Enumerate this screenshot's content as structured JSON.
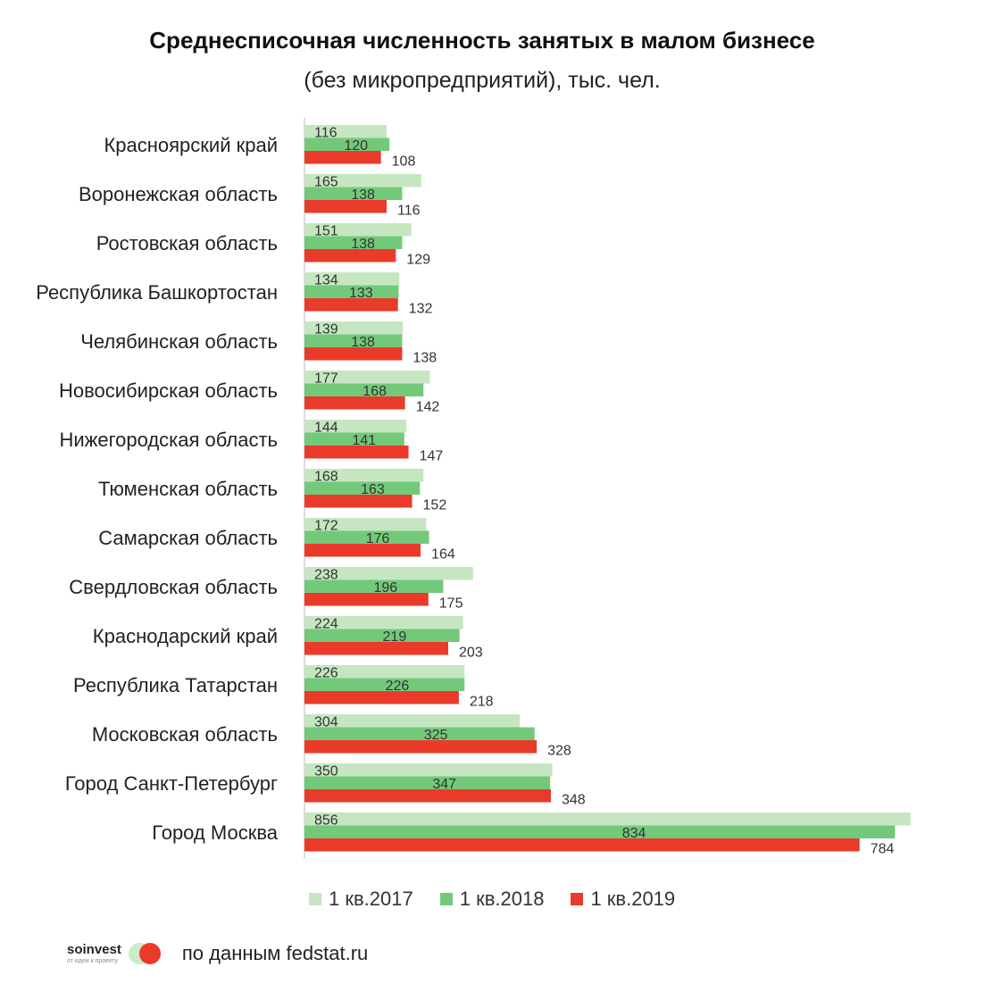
{
  "title": "Среднесписочная численность занятых в малом бизнесе",
  "subtitle": "(без микропредприятий), тыс. чел.",
  "source": "по данным fedstat.ru",
  "logo": {
    "name": "soinvest",
    "tagline": "от идеи к проекту"
  },
  "colors": {
    "s2017": "#c6e6c1",
    "s2018": "#73c97a",
    "s2019": "#ea3a2a",
    "axis": "#bbbbbb",
    "label": "#333333"
  },
  "chart_data": {
    "type": "bar",
    "orientation": "horizontal",
    "title": "Среднесписочная численность занятых в малом бизнесе",
    "subtitle": "(без микропредприятий), тыс. чел.",
    "legend_position": "bottom",
    "grid": false,
    "xlim": [
      0,
      856
    ],
    "categories": [
      "Красноярский край",
      "Воронежская область",
      "Ростовская область",
      "Республика Башкортостан",
      "Челябинская область",
      "Новосибирская область",
      "Нижегородская область",
      "Тюменская область",
      "Самарская область",
      "Свердловская область",
      "Краснодарский край",
      "Республика Татарстан",
      "Московская область",
      "Город Санкт-Петербург",
      "Город Москва"
    ],
    "series": [
      {
        "name": "1 кв.2017",
        "color": "#c6e6c1",
        "values": [
          116,
          165,
          151,
          134,
          139,
          177,
          144,
          168,
          172,
          238,
          224,
          226,
          304,
          350,
          856
        ]
      },
      {
        "name": "1 кв.2018",
        "color": "#73c97a",
        "values": [
          120,
          138,
          138,
          133,
          138,
          168,
          141,
          163,
          176,
          196,
          219,
          226,
          325,
          347,
          834
        ]
      },
      {
        "name": "1 кв.2019",
        "color": "#ea3a2a",
        "values": [
          108,
          116,
          129,
          132,
          138,
          142,
          147,
          152,
          164,
          175,
          203,
          218,
          328,
          348,
          784
        ]
      }
    ]
  }
}
